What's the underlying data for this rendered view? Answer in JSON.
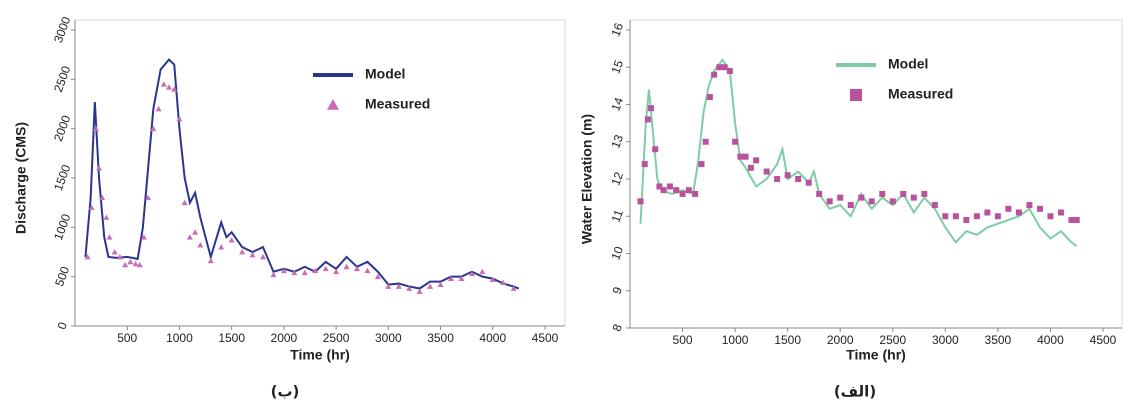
{
  "chart_data": [
    {
      "type": "line",
      "caption": "(ب)",
      "xlabel": "Time (hr)",
      "ylabel": "Discharge (CMS)",
      "xlim": [
        0,
        4500
      ],
      "xticks": [
        500,
        1000,
        1500,
        2000,
        2500,
        3000,
        3500,
        4000,
        4500
      ],
      "ylim": [
        0,
        3000
      ],
      "yticks": [
        0,
        500,
        1000,
        1500,
        2000,
        2500,
        3000
      ],
      "series": [
        {
          "name": "Model",
          "color": "#2b3590",
          "marker": "none",
          "x": [
            100,
            150,
            190,
            230,
            280,
            320,
            400,
            500,
            600,
            650,
            700,
            750,
            820,
            900,
            950,
            1000,
            1050,
            1100,
            1150,
            1200,
            1250,
            1300,
            1400,
            1450,
            1500,
            1600,
            1700,
            1800,
            1900,
            2000,
            2100,
            2200,
            2300,
            2400,
            2500,
            2600,
            2700,
            2800,
            2900,
            3000,
            3100,
            3200,
            3300,
            3400,
            3500,
            3600,
            3700,
            3800,
            3900,
            4000,
            4100,
            4200,
            4250
          ],
          "values": [
            700,
            1300,
            2270,
            1500,
            900,
            700,
            690,
            700,
            680,
            1000,
            1600,
            2200,
            2600,
            2700,
            2650,
            2000,
            1500,
            1250,
            1350,
            1100,
            900,
            700,
            1050,
            900,
            950,
            800,
            750,
            800,
            550,
            580,
            550,
            600,
            550,
            650,
            580,
            700,
            600,
            650,
            550,
            420,
            430,
            400,
            380,
            450,
            450,
            500,
            500,
            550,
            500,
            480,
            430,
            400,
            380
          ]
        },
        {
          "name": "Measured",
          "color": "#c86cb4",
          "marker": "triangle",
          "x": [
            120,
            160,
            200,
            230,
            260,
            300,
            330,
            380,
            430,
            480,
            530,
            580,
            620,
            660,
            700,
            750,
            800,
            850,
            900,
            950,
            1000,
            1050,
            1100,
            1150,
            1200,
            1300,
            1400,
            1500,
            1600,
            1700,
            1800,
            1900,
            2000,
            2100,
            2200,
            2300,
            2400,
            2500,
            2600,
            2700,
            2800,
            2900,
            3000,
            3100,
            3200,
            3300,
            3400,
            3500,
            3600,
            3700,
            3800,
            3900,
            4000,
            4100,
            4200
          ],
          "values": [
            700,
            1200,
            2000,
            1600,
            1300,
            1100,
            900,
            750,
            700,
            620,
            650,
            630,
            620,
            900,
            1300,
            2000,
            2200,
            2450,
            2420,
            2400,
            2100,
            1250,
            900,
            950,
            820,
            660,
            800,
            870,
            750,
            720,
            700,
            520,
            560,
            540,
            540,
            560,
            580,
            550,
            600,
            580,
            560,
            500,
            400,
            400,
            380,
            350,
            400,
            420,
            480,
            480,
            530,
            550,
            470,
            440,
            380
          ]
        }
      ]
    },
    {
      "type": "line",
      "caption": "(الف)",
      "xlabel": "Time (hr)",
      "ylabel": "Water Elevation (m)",
      "xlim": [
        0,
        4500
      ],
      "xticks": [
        500,
        1000,
        1500,
        2000,
        2500,
        3000,
        3500,
        4000,
        4500
      ],
      "ylim": [
        8,
        16
      ],
      "yticks": [
        8,
        9,
        10,
        11,
        12,
        13,
        14,
        15,
        16
      ],
      "series": [
        {
          "name": "Model",
          "color": "#7fcca6",
          "marker": "none",
          "x": [
            100,
            150,
            180,
            220,
            260,
            300,
            400,
            500,
            600,
            650,
            700,
            750,
            800,
            880,
            950,
            1000,
            1050,
            1100,
            1200,
            1300,
            1400,
            1450,
            1500,
            1600,
            1700,
            1750,
            1800,
            1900,
            2000,
            2100,
            2200,
            2300,
            2400,
            2500,
            2600,
            2700,
            2800,
            2900,
            3000,
            3100,
            3200,
            3300,
            3400,
            3500,
            3600,
            3700,
            3800,
            3900,
            4000,
            4100,
            4200,
            4250
          ],
          "values": [
            10.8,
            13.5,
            14.4,
            13.2,
            12.0,
            11.7,
            11.6,
            11.7,
            11.6,
            12.5,
            13.8,
            14.5,
            14.9,
            15.2,
            14.9,
            13.5,
            12.5,
            12.3,
            11.8,
            12.0,
            12.4,
            12.8,
            12.0,
            12.2,
            11.9,
            12.2,
            11.6,
            11.2,
            11.3,
            11.0,
            11.6,
            11.2,
            11.5,
            11.3,
            11.6,
            11.1,
            11.5,
            11.2,
            10.7,
            10.3,
            10.6,
            10.5,
            10.7,
            10.8,
            10.9,
            11.0,
            11.2,
            10.7,
            10.4,
            10.6,
            10.3,
            10.2
          ]
        },
        {
          "name": "Measured",
          "color": "#b8529a",
          "marker": "square",
          "x": [
            100,
            140,
            170,
            200,
            240,
            280,
            320,
            380,
            440,
            500,
            560,
            620,
            680,
            720,
            760,
            800,
            850,
            900,
            950,
            1000,
            1050,
            1100,
            1150,
            1200,
            1300,
            1400,
            1500,
            1600,
            1700,
            1800,
            1900,
            2000,
            2100,
            2200,
            2300,
            2400,
            2500,
            2600,
            2700,
            2800,
            2900,
            3000,
            3100,
            3200,
            3300,
            3400,
            3500,
            3600,
            3700,
            3800,
            3900,
            4000,
            4100,
            4200,
            4250
          ],
          "values": [
            11.4,
            12.4,
            13.6,
            13.9,
            12.8,
            11.8,
            11.7,
            11.8,
            11.7,
            11.6,
            11.7,
            11.6,
            12.4,
            13.0,
            14.2,
            14.8,
            15.0,
            15.0,
            14.9,
            13.0,
            12.6,
            12.6,
            12.3,
            12.5,
            12.2,
            12.0,
            12.1,
            12.0,
            11.9,
            11.6,
            11.4,
            11.5,
            11.3,
            11.5,
            11.4,
            11.6,
            11.4,
            11.6,
            11.5,
            11.6,
            11.3,
            11.0,
            11.0,
            10.9,
            11.0,
            11.1,
            11.0,
            11.2,
            11.1,
            11.3,
            11.2,
            11.0,
            11.1,
            10.9,
            10.9
          ]
        }
      ]
    }
  ]
}
